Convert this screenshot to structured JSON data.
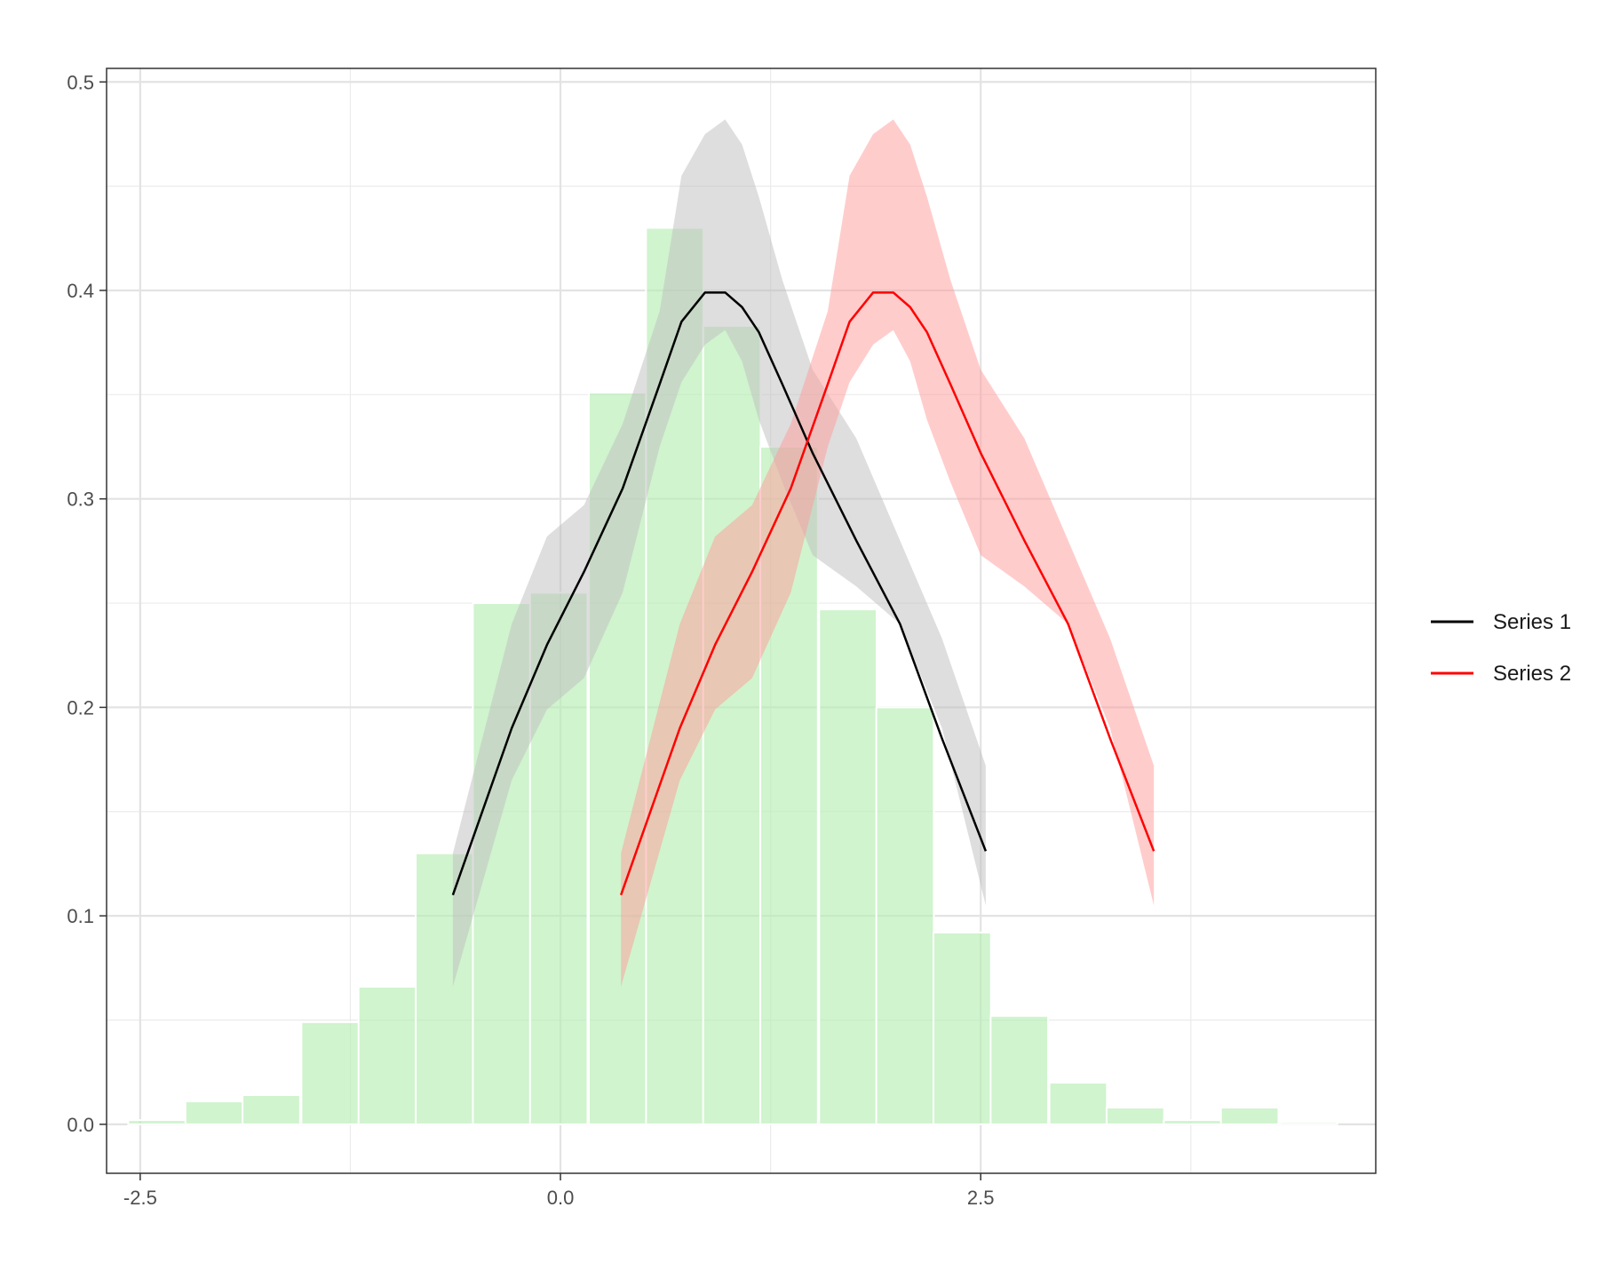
{
  "chart_data": {
    "type": "bar",
    "title": "",
    "xlabel": "",
    "ylabel": "",
    "xlim": [
      -2.7,
      4.85
    ],
    "ylim": [
      -0.0235,
      0.5065
    ],
    "grid": true,
    "legend_position": "right",
    "x_ticks": [
      {
        "value": -2.5,
        "label": "-2.5"
      },
      {
        "value": 0.0,
        "label": "0.0"
      },
      {
        "value": 2.5,
        "label": "2.5"
      }
    ],
    "y_ticks": [
      {
        "value": 0.0,
        "label": "0.0"
      },
      {
        "value": 0.1,
        "label": "0.1"
      },
      {
        "value": 0.2,
        "label": "0.2"
      },
      {
        "value": 0.3,
        "label": "0.3"
      },
      {
        "value": 0.4,
        "label": "0.4"
      },
      {
        "value": 0.5,
        "label": "0.5"
      }
    ],
    "histogram": {
      "color": "#b7eeb3",
      "bin_width": 0.3421,
      "centers": [
        -2.4,
        -2.06,
        -1.72,
        -1.37,
        -1.03,
        -0.69,
        -0.35,
        -0.01,
        0.34,
        0.68,
        1.02,
        1.36,
        1.71,
        2.05,
        2.39,
        2.73,
        3.08,
        3.42,
        3.76,
        4.1,
        4.45
      ],
      "values": [
        0.002,
        0.011,
        0.014,
        0.049,
        0.066,
        0.13,
        0.25,
        0.255,
        0.351,
        0.43,
        0.383,
        0.325,
        0.247,
        0.2,
        0.092,
        0.052,
        0.02,
        0.008,
        0.002,
        0.008,
        0.001
      ]
    },
    "series": [
      {
        "name": "Series 1",
        "color": "#000000",
        "band_color": "#bdbdbd",
        "x": [
          -0.64,
          -0.29,
          -0.08,
          0.14,
          0.37,
          0.59,
          0.72,
          0.86,
          0.98,
          1.08,
          1.18,
          1.32,
          1.5,
          1.76,
          2.02,
          2.27,
          2.53
        ],
        "y": [
          0.11,
          0.19,
          0.23,
          0.265,
          0.305,
          0.355,
          0.385,
          0.399,
          0.399,
          0.392,
          0.38,
          0.355,
          0.322,
          0.28,
          0.24,
          0.185,
          0.131
        ],
        "lower": [
          0.066,
          0.165,
          0.199,
          0.214,
          0.255,
          0.325,
          0.356,
          0.374,
          0.381,
          0.366,
          0.338,
          0.308,
          0.273,
          0.258,
          0.24,
          0.19,
          0.105
        ],
        "upper": [
          0.13,
          0.24,
          0.282,
          0.297,
          0.336,
          0.39,
          0.455,
          0.475,
          0.482,
          0.47,
          0.445,
          0.405,
          0.362,
          0.329,
          0.28,
          0.233,
          0.172
        ]
      },
      {
        "name": "Series 2",
        "color": "#ff0000",
        "band_color": "#ff9999",
        "x": [
          0.36,
          0.71,
          0.92,
          1.14,
          1.37,
          1.59,
          1.72,
          1.86,
          1.98,
          2.08,
          2.18,
          2.32,
          2.5,
          2.76,
          3.02,
          3.27,
          3.53
        ],
        "y": [
          0.11,
          0.19,
          0.23,
          0.265,
          0.305,
          0.355,
          0.385,
          0.399,
          0.399,
          0.392,
          0.38,
          0.355,
          0.322,
          0.28,
          0.24,
          0.185,
          0.131
        ],
        "lower": [
          0.066,
          0.165,
          0.199,
          0.214,
          0.255,
          0.325,
          0.356,
          0.374,
          0.381,
          0.366,
          0.338,
          0.308,
          0.273,
          0.258,
          0.24,
          0.19,
          0.105
        ],
        "upper": [
          0.13,
          0.24,
          0.282,
          0.297,
          0.336,
          0.39,
          0.455,
          0.475,
          0.482,
          0.47,
          0.445,
          0.405,
          0.362,
          0.329,
          0.28,
          0.233,
          0.172
        ]
      }
    ]
  }
}
